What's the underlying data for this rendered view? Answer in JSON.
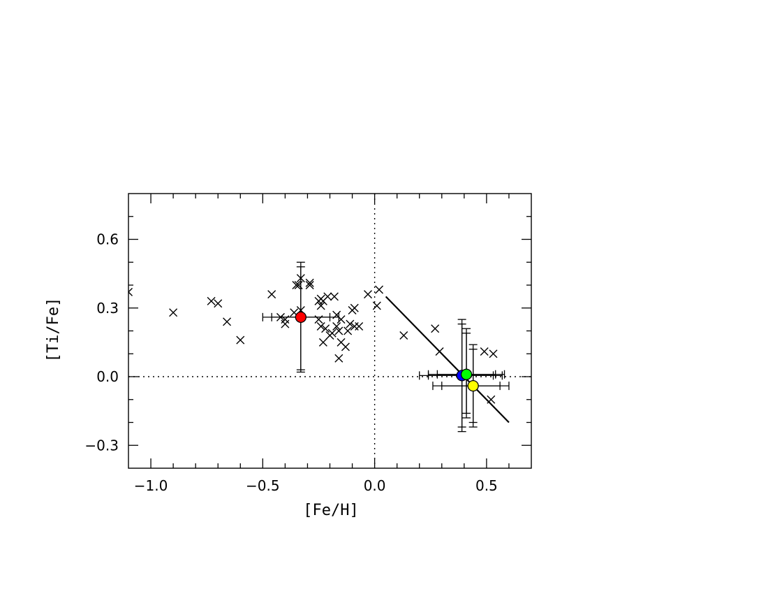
{
  "chart_data": {
    "type": "scatter",
    "xlabel": "[Fe/H]",
    "ylabel": "[Ti/Fe]",
    "xlim": [
      -1.1,
      0.7
    ],
    "ylim": [
      -0.4,
      0.8
    ],
    "x_ticks": [
      -1.0,
      -0.5,
      0.0,
      0.5
    ],
    "x_tick_labels": [
      "−1.0",
      "−0.5",
      "0.0",
      "0.5"
    ],
    "y_ticks": [
      -0.3,
      0.0,
      0.3,
      0.6
    ],
    "y_tick_labels": [
      "−0.3",
      "0.0",
      "0.3",
      "0.6"
    ],
    "grid": false,
    "reference_lines": [
      {
        "orientation": "horizontal",
        "value": 0.0,
        "style": "dotted"
      },
      {
        "orientation": "vertical",
        "value": 0.0,
        "style": "dotted"
      }
    ],
    "fit_line": {
      "x": [
        0.05,
        0.6
      ],
      "y": [
        0.35,
        -0.2
      ]
    },
    "series": [
      {
        "marker": "x",
        "color": "#000000",
        "points": [
          [
            -1.1,
            0.37
          ],
          [
            -0.9,
            0.28
          ],
          [
            -0.73,
            0.33
          ],
          [
            -0.7,
            0.32
          ],
          [
            -0.66,
            0.24
          ],
          [
            -0.6,
            0.16
          ],
          [
            -0.46,
            0.36
          ],
          [
            -0.42,
            0.26
          ],
          [
            -0.4,
            0.25
          ],
          [
            -0.4,
            0.23
          ],
          [
            -0.36,
            0.28
          ],
          [
            -0.35,
            0.4
          ],
          [
            -0.34,
            0.4
          ],
          [
            -0.33,
            0.43
          ],
          [
            -0.33,
            0.29
          ],
          [
            -0.29,
            0.41
          ],
          [
            -0.29,
            0.4
          ],
          [
            -0.25,
            0.33
          ],
          [
            -0.24,
            0.34
          ],
          [
            -0.24,
            0.31
          ],
          [
            -0.23,
            0.33
          ],
          [
            -0.25,
            0.25
          ],
          [
            -0.24,
            0.22
          ],
          [
            -0.23,
            0.15
          ],
          [
            -0.22,
            0.21
          ],
          [
            -0.21,
            0.35
          ],
          [
            -0.2,
            0.18
          ],
          [
            -0.19,
            0.19
          ],
          [
            -0.18,
            0.35
          ],
          [
            -0.17,
            0.27
          ],
          [
            -0.17,
            0.22
          ],
          [
            -0.16,
            0.2
          ],
          [
            -0.15,
            0.25
          ],
          [
            -0.16,
            0.08
          ],
          [
            -0.15,
            0.15
          ],
          [
            -0.13,
            0.13
          ],
          [
            -0.12,
            0.2
          ],
          [
            -0.11,
            0.23
          ],
          [
            -0.09,
            0.3
          ],
          [
            -0.1,
            0.29
          ],
          [
            -0.09,
            0.22
          ],
          [
            -0.07,
            0.22
          ],
          [
            -0.03,
            0.36
          ],
          [
            0.01,
            0.31
          ],
          [
            0.02,
            0.38
          ],
          [
            0.13,
            0.18
          ],
          [
            0.27,
            0.21
          ],
          [
            0.29,
            0.11
          ],
          [
            0.49,
            0.11
          ],
          [
            0.53,
            0.1
          ],
          [
            0.52,
            -0.1
          ]
        ]
      },
      {
        "marker": "filled-circle",
        "points": [
          {
            "x": -0.33,
            "y": 0.26,
            "color": "#ff0000",
            "xerr": [
              [
                -0.5,
                -0.16
              ],
              [
                -0.46,
                -0.2
              ]
            ],
            "yerr": [
              [
                0.02,
                0.5
              ],
              [
                0.03,
                0.48
              ]
            ]
          },
          {
            "x": 0.39,
            "y": 0.005,
            "color": "#0000ff",
            "xerr": [
              [
                0.2,
                0.57
              ],
              [
                0.24,
                0.53
              ]
            ],
            "yerr": [
              [
                -0.24,
                0.25
              ],
              [
                -0.22,
                0.23
              ]
            ]
          },
          {
            "x": 0.41,
            "y": 0.01,
            "color": "#00ff00",
            "xerr": [
              [
                0.24,
                0.58
              ],
              [
                0.28,
                0.54
              ]
            ],
            "yerr": [
              [
                -0.18,
                0.21
              ],
              [
                -0.16,
                0.19
              ]
            ]
          },
          {
            "x": 0.44,
            "y": -0.04,
            "color": "#ffff00",
            "xerr": [
              [
                0.26,
                0.6
              ],
              [
                0.3,
                0.56
              ]
            ],
            "yerr": [
              [
                -0.22,
                0.14
              ],
              [
                -0.2,
                0.12
              ]
            ]
          }
        ]
      }
    ]
  }
}
